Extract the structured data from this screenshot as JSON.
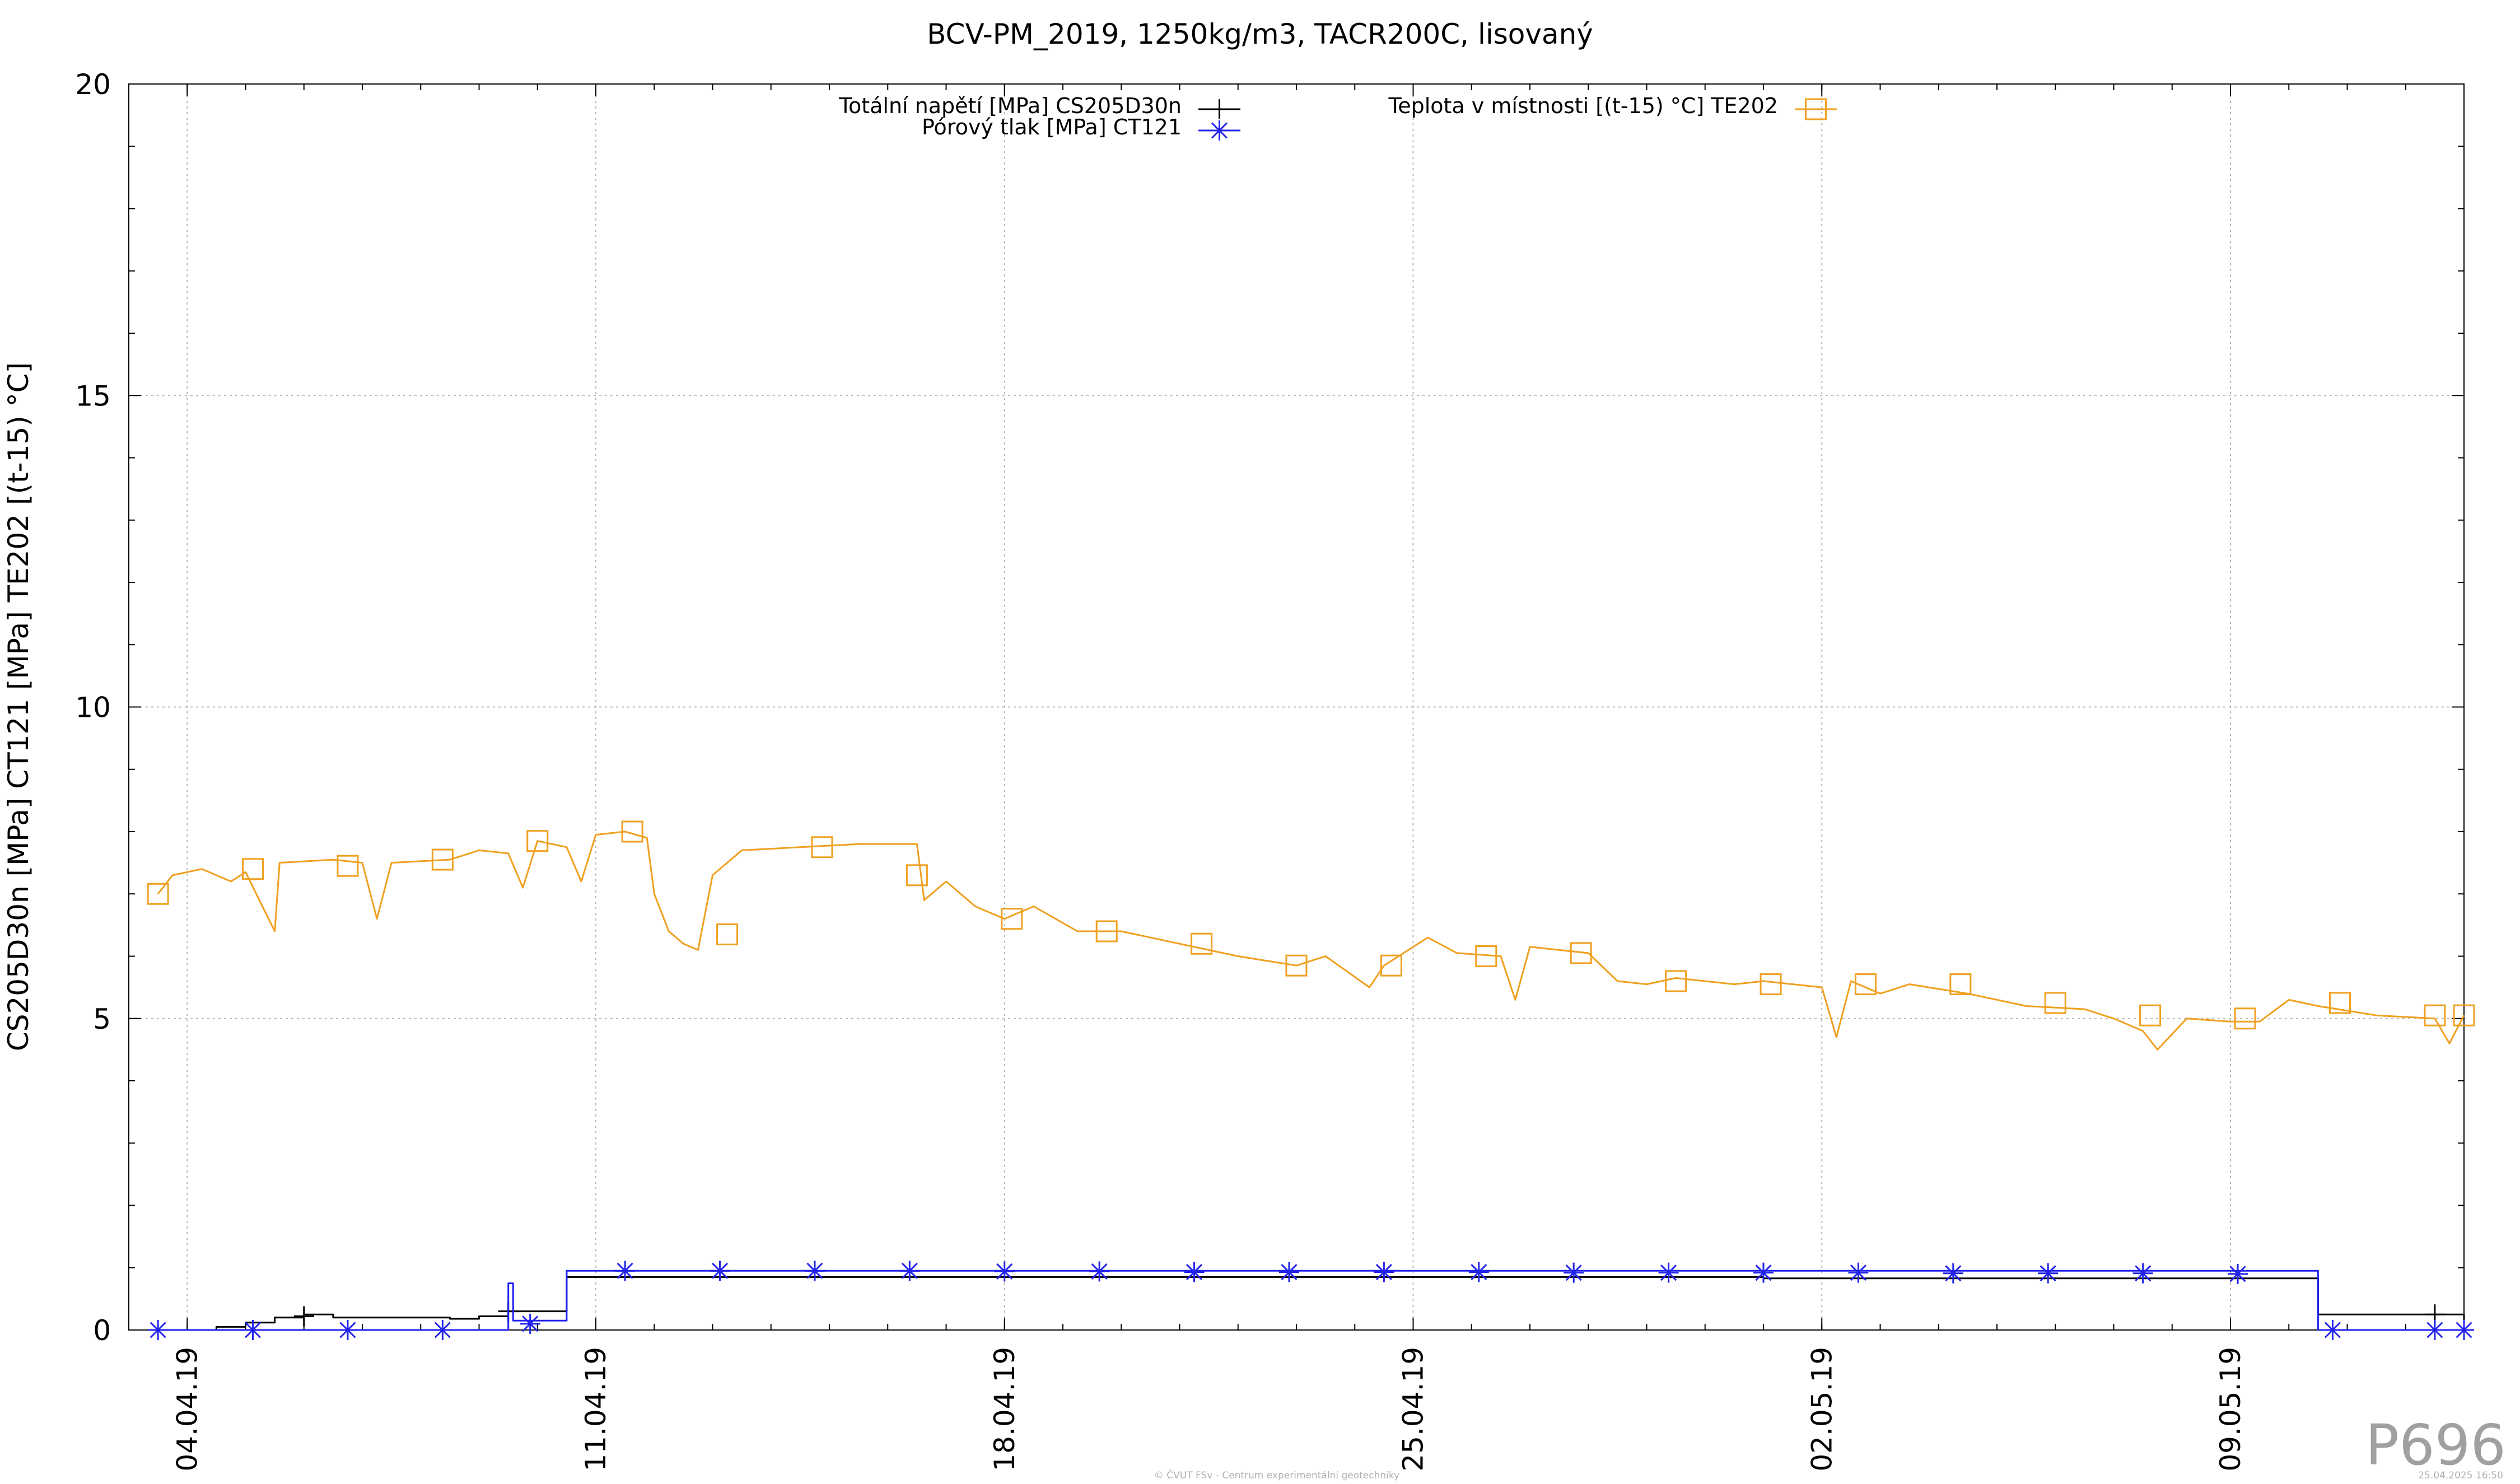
{
  "chart_data": {
    "type": "line",
    "title": "BCV-PM_2019, 1250kg/m3, TACR200C, lisovaný",
    "ylabel": "CS205D30n [MPa] CT121 [MPa] TE202 [(t-15) °C]",
    "xlabel": "",
    "ylim": [
      0,
      20
    ],
    "xlim": [
      "2019-04-03",
      "2019-05-13"
    ],
    "y_ticks": [
      "0",
      "5",
      "10",
      "15",
      "20"
    ],
    "x_ticks": [
      {
        "date": "2019-04-04",
        "label": "04.04.19"
      },
      {
        "date": "2019-04-11",
        "label": "11.04.19"
      },
      {
        "date": "2019-04-18",
        "label": "18.04.19"
      },
      {
        "date": "2019-04-25",
        "label": "25.04.19"
      },
      {
        "date": "2019-05-02",
        "label": "02.05.19"
      },
      {
        "date": "2019-05-09",
        "label": "09.05.19"
      }
    ],
    "grid": true,
    "legend_position": "top",
    "series": [
      {
        "name": "Totální napětí [MPa] CS205D30n",
        "color": "#000000",
        "marker": "plus",
        "line": "step",
        "points": [
          [
            "2019-04-03 12:00",
            0.0
          ],
          [
            "2019-04-04 12:00",
            0.05
          ],
          [
            "2019-04-05 00:00",
            0.12
          ],
          [
            "2019-04-05 12:00",
            0.2
          ],
          [
            "2019-04-06 00:00",
            0.25
          ],
          [
            "2019-04-06 12:00",
            0.2
          ],
          [
            "2019-04-08 12:00",
            0.18
          ],
          [
            "2019-04-09 00:00",
            0.22
          ],
          [
            "2019-04-09 12:00",
            0.3
          ],
          [
            "2019-04-10 12:00",
            0.85
          ],
          [
            "2019-04-20 00:00",
            0.85
          ],
          [
            "2019-05-01 00:00",
            0.83
          ],
          [
            "2019-05-10 12:00",
            0.82
          ],
          [
            "2019-05-10 12:01",
            0.25
          ],
          [
            "2019-05-12 12:00",
            0.25
          ],
          [
            "2019-05-13 00:00",
            0.0
          ]
        ],
        "markers": [
          [
            "2019-04-06 00:00",
            0.22
          ],
          [
            "2019-04-09 12:00",
            0.3
          ],
          [
            "2019-05-12 12:00",
            0.25
          ]
        ]
      },
      {
        "name": "Pórový tlak [MPa] CT121",
        "color": "#2222ee",
        "marker": "star",
        "line": "step",
        "points": [
          [
            "2019-04-03 12:00",
            0.0
          ],
          [
            "2019-04-09 12:00",
            0.0
          ],
          [
            "2019-04-09 12:01",
            0.75
          ],
          [
            "2019-04-09 14:00",
            0.15
          ],
          [
            "2019-04-10 12:00",
            0.15
          ],
          [
            "2019-04-10 12:01",
            0.95
          ],
          [
            "2019-05-10 12:00",
            0.9
          ],
          [
            "2019-05-10 12:01",
            0.0
          ],
          [
            "2019-05-13 00:00",
            0.0
          ]
        ],
        "markers": [
          [
            "2019-04-03 12:00",
            0.0
          ],
          [
            "2019-04-05 03:00",
            0.0
          ],
          [
            "2019-04-06 18:00",
            0.0
          ],
          [
            "2019-04-08 09:00",
            0.0
          ],
          [
            "2019-04-09 21:00",
            0.1
          ],
          [
            "2019-04-11 12:00",
            0.95
          ],
          [
            "2019-04-13 03:00",
            0.95
          ],
          [
            "2019-04-14 18:00",
            0.95
          ],
          [
            "2019-04-16 09:00",
            0.95
          ],
          [
            "2019-04-18 00:00",
            0.94
          ],
          [
            "2019-04-19 15:00",
            0.94
          ],
          [
            "2019-04-21 06:00",
            0.93
          ],
          [
            "2019-04-22 21:00",
            0.93
          ],
          [
            "2019-04-24 12:00",
            0.93
          ],
          [
            "2019-04-26 03:00",
            0.93
          ],
          [
            "2019-04-27 18:00",
            0.92
          ],
          [
            "2019-04-29 09:00",
            0.92
          ],
          [
            "2019-05-01 00:00",
            0.92
          ],
          [
            "2019-05-02 15:00",
            0.92
          ],
          [
            "2019-05-04 06:00",
            0.91
          ],
          [
            "2019-05-05 21:00",
            0.91
          ],
          [
            "2019-05-07 12:00",
            0.91
          ],
          [
            "2019-05-09 03:00",
            0.9
          ],
          [
            "2019-05-10 18:00",
            0.0
          ],
          [
            "2019-05-12 12:00",
            0.0
          ],
          [
            "2019-05-13 00:00",
            0.0
          ]
        ]
      },
      {
        "name": "Teplota v místnosti [(t-15) °C] TE202",
        "color": "#f0a020",
        "marker": "square",
        "line": "line",
        "points": [
          [
            "2019-04-03 12:00",
            7.0
          ],
          [
            "2019-04-03 18:00",
            7.3
          ],
          [
            "2019-04-04 06:00",
            7.4
          ],
          [
            "2019-04-04 18:00",
            7.2
          ],
          [
            "2019-04-05 00:00",
            7.35
          ],
          [
            "2019-04-05 12:00",
            6.4
          ],
          [
            "2019-04-05 14:00",
            7.5
          ],
          [
            "2019-04-06 12:00",
            7.55
          ],
          [
            "2019-04-07 00:00",
            7.5
          ],
          [
            "2019-04-07 06:00",
            6.6
          ],
          [
            "2019-04-07 12:00",
            7.5
          ],
          [
            "2019-04-08 12:00",
            7.55
          ],
          [
            "2019-04-09 00:00",
            7.7
          ],
          [
            "2019-04-09 12:00",
            7.65
          ],
          [
            "2019-04-09 18:00",
            7.1
          ],
          [
            "2019-04-10 00:00",
            7.85
          ],
          [
            "2019-04-10 12:00",
            7.75
          ],
          [
            "2019-04-10 18:00",
            7.2
          ],
          [
            "2019-04-11 00:00",
            7.95
          ],
          [
            "2019-04-11 12:00",
            8.0
          ],
          [
            "2019-04-11 21:00",
            7.9
          ],
          [
            "2019-04-12 00:00",
            7.0
          ],
          [
            "2019-04-12 06:00",
            6.4
          ],
          [
            "2019-04-12 12:00",
            6.2
          ],
          [
            "2019-04-12 18:00",
            6.1
          ],
          [
            "2019-04-13 00:00",
            7.3
          ],
          [
            "2019-04-13 12:00",
            7.7
          ],
          [
            "2019-04-14 12:00",
            7.75
          ],
          [
            "2019-04-15 12:00",
            7.8
          ],
          [
            "2019-04-16 12:00",
            7.8
          ],
          [
            "2019-04-16 15:00",
            6.9
          ],
          [
            "2019-04-17 00:00",
            7.2
          ],
          [
            "2019-04-17 12:00",
            6.8
          ],
          [
            "2019-04-18 00:00",
            6.6
          ],
          [
            "2019-04-18 12:00",
            6.8
          ],
          [
            "2019-04-19 06:00",
            6.4
          ],
          [
            "2019-04-20 00:00",
            6.4
          ],
          [
            "2019-04-21 00:00",
            6.2
          ],
          [
            "2019-04-22 00:00",
            6.0
          ],
          [
            "2019-04-23 00:00",
            5.85
          ],
          [
            "2019-04-23 12:00",
            6.0
          ],
          [
            "2019-04-24 06:00",
            5.5
          ],
          [
            "2019-04-24 12:00",
            5.85
          ],
          [
            "2019-04-25 06:00",
            6.3
          ],
          [
            "2019-04-25 18:00",
            6.05
          ],
          [
            "2019-04-26 12:00",
            6.0
          ],
          [
            "2019-04-26 18:00",
            5.3
          ],
          [
            "2019-04-27 00:00",
            6.15
          ],
          [
            "2019-04-27 12:00",
            6.1
          ],
          [
            "2019-04-28 00:00",
            6.05
          ],
          [
            "2019-04-28 12:00",
            5.6
          ],
          [
            "2019-04-29 00:00",
            5.55
          ],
          [
            "2019-04-29 12:00",
            5.65
          ],
          [
            "2019-04-30 12:00",
            5.55
          ],
          [
            "2019-05-01 00:00",
            5.6
          ],
          [
            "2019-05-02 00:00",
            5.5
          ],
          [
            "2019-05-02 06:00",
            4.7
          ],
          [
            "2019-05-02 12:00",
            5.6
          ],
          [
            "2019-05-03 00:00",
            5.4
          ],
          [
            "2019-05-03 12:00",
            5.55
          ],
          [
            "2019-05-04 12:00",
            5.4
          ],
          [
            "2019-05-05 12:00",
            5.2
          ],
          [
            "2019-05-06 12:00",
            5.15
          ],
          [
            "2019-05-07 00:00",
            5.0
          ],
          [
            "2019-05-07 12:00",
            4.8
          ],
          [
            "2019-05-07 18:00",
            4.5
          ],
          [
            "2019-05-08 06:00",
            5.0
          ],
          [
            "2019-05-09 00:00",
            4.95
          ],
          [
            "2019-05-09 12:00",
            4.95
          ],
          [
            "2019-05-10 00:00",
            5.3
          ],
          [
            "2019-05-10 12:00",
            5.2
          ],
          [
            "2019-05-11 12:00",
            5.05
          ],
          [
            "2019-05-12 12:00",
            5.0
          ],
          [
            "2019-05-12 18:00",
            4.6
          ],
          [
            "2019-05-13 00:00",
            5.05
          ]
        ],
        "markers": [
          [
            "2019-04-03 12:00",
            7.0
          ],
          [
            "2019-04-05 03:00",
            7.4
          ],
          [
            "2019-04-06 18:00",
            7.45
          ],
          [
            "2019-04-08 09:00",
            7.55
          ],
          [
            "2019-04-10 00:00",
            7.85
          ],
          [
            "2019-04-11 15:00",
            8.0
          ],
          [
            "2019-04-13 06:00",
            6.35
          ],
          [
            "2019-04-14 21:00",
            7.75
          ],
          [
            "2019-04-16 12:00",
            7.3
          ],
          [
            "2019-04-18 03:00",
            6.6
          ],
          [
            "2019-04-19 18:00",
            6.4
          ],
          [
            "2019-04-21 09:00",
            6.2
          ],
          [
            "2019-04-23 00:00",
            5.85
          ],
          [
            "2019-04-24 15:00",
            5.85
          ],
          [
            "2019-04-26 06:00",
            6.0
          ],
          [
            "2019-04-27 21:00",
            6.05
          ],
          [
            "2019-04-29 12:00",
            5.6
          ],
          [
            "2019-05-01 03:00",
            5.55
          ],
          [
            "2019-05-02 18:00",
            5.55
          ],
          [
            "2019-05-04 09:00",
            5.55
          ],
          [
            "2019-05-06 00:00",
            5.25
          ],
          [
            "2019-05-07 15:00",
            5.05
          ],
          [
            "2019-05-09 06:00",
            5.0
          ],
          [
            "2019-05-10 21:00",
            5.25
          ],
          [
            "2019-05-12 12:00",
            5.05
          ],
          [
            "2019-05-13 00:00",
            5.05
          ]
        ]
      }
    ]
  },
  "footer": {
    "watermark": "P696",
    "credit": "© ČVUT FSv - Centrum experimentální geotechniky",
    "timestamp": "25.04.2025 16:50"
  }
}
